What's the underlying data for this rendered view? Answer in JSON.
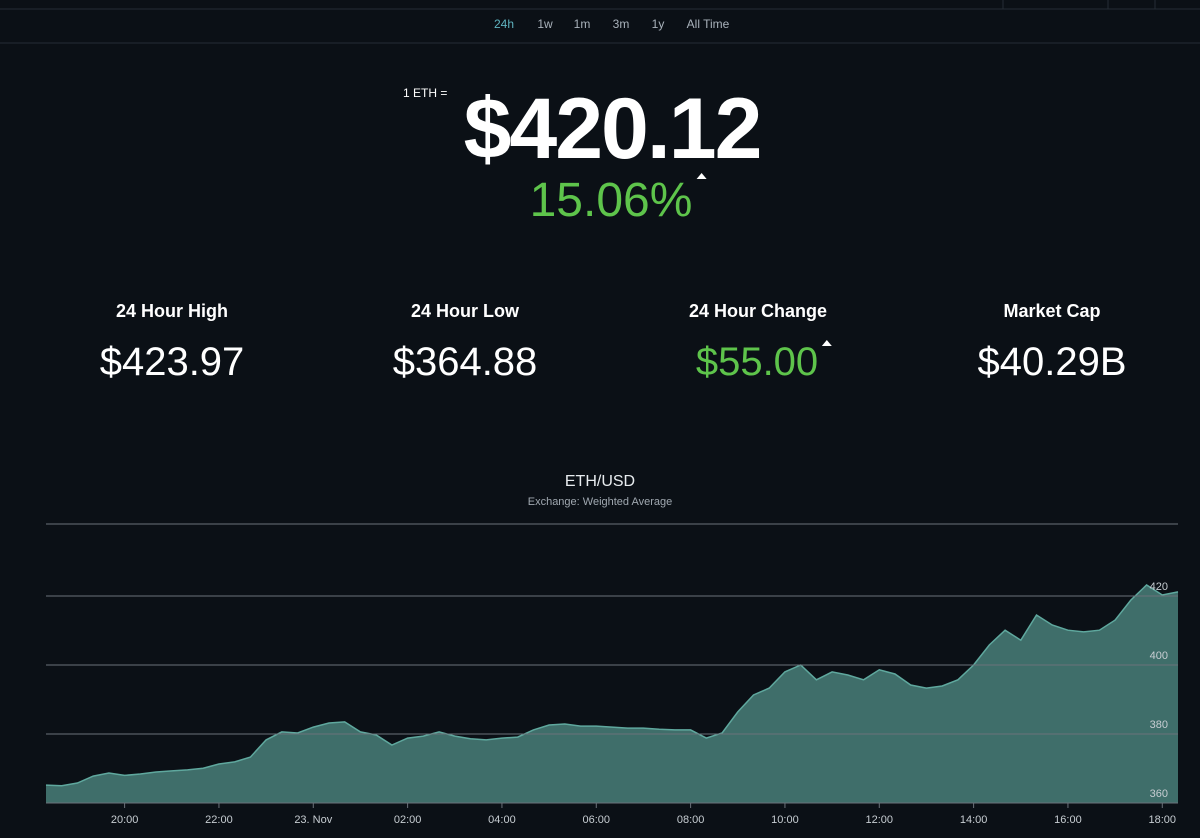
{
  "nav": {
    "ranges": [
      "24h",
      "1w",
      "1m",
      "3m",
      "1y",
      "All Time"
    ]
  },
  "price": {
    "unit_label": "1 ETH =",
    "value": "$420.12",
    "change": "15.06%"
  },
  "stats": [
    {
      "label": "24 Hour High",
      "value": "$423.97"
    },
    {
      "label": "24 Hour Low",
      "value": "$364.88"
    },
    {
      "label": "24 Hour Change",
      "value": "$55.00"
    },
    {
      "label": "Market Cap",
      "value": "$40.29B"
    }
  ],
  "chart_data": {
    "type": "area",
    "title": "ETH/USD",
    "subtitle": "Exchange: Weighted Average",
    "categories": [
      null,
      null,
      null,
      null,
      null,
      "20:00",
      null,
      null,
      null,
      null,
      null,
      "22:00",
      null,
      null,
      null,
      null,
      null,
      "23. Nov",
      null,
      null,
      null,
      null,
      null,
      "02:00",
      null,
      null,
      null,
      null,
      null,
      "04:00",
      null,
      null,
      null,
      null,
      null,
      "06:00",
      null,
      null,
      null,
      null,
      null,
      "08:00",
      null,
      null,
      null,
      null,
      null,
      "10:00",
      null,
      null,
      null,
      null,
      null,
      "12:00",
      null,
      null,
      null,
      null,
      null,
      "14:00",
      null,
      null,
      null,
      null,
      null,
      "16:00",
      null,
      null,
      null,
      null,
      null,
      "18:00",
      null
    ],
    "values": [
      365.2,
      365,
      365.8,
      367.8,
      368.7,
      368,
      368.4,
      369,
      369.3,
      369.6,
      370.1,
      371.3,
      371.9,
      373.3,
      378.3,
      380.6,
      380.3,
      382,
      383.2,
      383.5,
      380.6,
      379.7,
      376.8,
      378.8,
      379.4,
      380.6,
      379.4,
      378.6,
      378.3,
      378.8,
      379.1,
      381.2,
      382.6,
      382.9,
      382.3,
      382.3,
      382,
      381.7,
      381.7,
      381.4,
      381.2,
      381.2,
      378.8,
      380.3,
      386.4,
      391.3,
      393.3,
      398,
      400,
      395.7,
      398,
      397.1,
      395.7,
      398.6,
      397.4,
      394.2,
      393.3,
      393.9,
      395.7,
      400,
      405.8,
      410.1,
      407.2,
      414.5,
      411.6,
      410.1,
      409.6,
      410.1,
      413,
      418.8,
      423.2,
      420.3,
      421.2
    ],
    "color": "#5fa89e",
    "ylim": [
      360,
      440
    ],
    "yticks": [
      360,
      380,
      400,
      420
    ],
    "grid": true
  }
}
